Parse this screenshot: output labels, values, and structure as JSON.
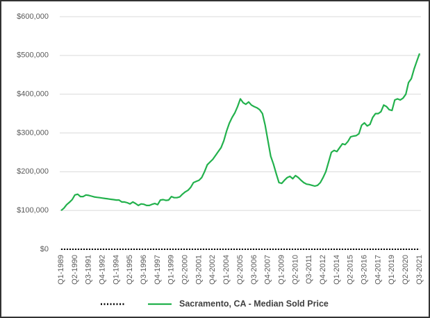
{
  "chart_data": {
    "type": "line",
    "categories": [
      "Q1-1989",
      null,
      null,
      null,
      null,
      "Q2-1990",
      null,
      null,
      null,
      null,
      "Q3-1991",
      null,
      null,
      null,
      null,
      "Q4-1992",
      null,
      null,
      null,
      null,
      "Q1-1994",
      null,
      null,
      null,
      null,
      "Q2-1995",
      null,
      null,
      null,
      null,
      "Q3-1996",
      null,
      null,
      null,
      null,
      "Q4-1997",
      null,
      null,
      null,
      null,
      "Q1-1999",
      null,
      null,
      null,
      null,
      "Q2-2000",
      null,
      null,
      null,
      null,
      "Q3-2001",
      null,
      null,
      null,
      null,
      "Q4-2002",
      null,
      null,
      null,
      null,
      "Q1-2004",
      null,
      null,
      null,
      null,
      "Q2-2005",
      null,
      null,
      null,
      null,
      "Q3-2006",
      null,
      null,
      null,
      null,
      "Q4-2007",
      null,
      null,
      null,
      null,
      "Q1-2009",
      null,
      null,
      null,
      null,
      "Q2-2010",
      null,
      null,
      null,
      null,
      "Q3-2011",
      null,
      null,
      null,
      null,
      "Q4-2012",
      null,
      null,
      null,
      null,
      "Q1-2014",
      null,
      null,
      null,
      null,
      "Q2-2015",
      null,
      null,
      null,
      null,
      "Q3-2016",
      null,
      null,
      null,
      null,
      "Q4-2017",
      null,
      null,
      null,
      null,
      "Q1-2019",
      null,
      null,
      null,
      null,
      "Q2-2020",
      null,
      null,
      null,
      null,
      "Q3-2021"
    ],
    "series": [
      {
        "color": "#000000",
        "dash": "dotted",
        "values": [
          0,
          0,
          0,
          0,
          0,
          0,
          0,
          0,
          0,
          0,
          0,
          0,
          0,
          0,
          0,
          0,
          0,
          0,
          0,
          0,
          0,
          0,
          0,
          0,
          0,
          0,
          0,
          0,
          0,
          0,
          0,
          0,
          0,
          0,
          0,
          0,
          0,
          0,
          0,
          0,
          0,
          0,
          0,
          0,
          0,
          0,
          0,
          0,
          0,
          0,
          0,
          0,
          0,
          0,
          0,
          0,
          0,
          0,
          0,
          0,
          0,
          0,
          0,
          0,
          0,
          0,
          0,
          0,
          0,
          0,
          0,
          0,
          0,
          0,
          0,
          0,
          0,
          0,
          0,
          0,
          0,
          0,
          0,
          0,
          0,
          0,
          0,
          0,
          0,
          0,
          0,
          0,
          0,
          0,
          0,
          0,
          0,
          0,
          0,
          0,
          0,
          0,
          0,
          0,
          0,
          0,
          0,
          0,
          0,
          0,
          0,
          0,
          0,
          0,
          0,
          0,
          0,
          0,
          0,
          0,
          0,
          0,
          0,
          0,
          0,
          0,
          0,
          0,
          0,
          0,
          0
        ]
      },
      {
        "name": "Sacramento, CA - Median Sold Price",
        "color": "#22b14c",
        "values": [
          100000,
          106000,
          115000,
          121000,
          128000,
          140000,
          142000,
          136000,
          136000,
          140000,
          139000,
          137000,
          135000,
          134000,
          133000,
          132000,
          131000,
          130000,
          129000,
          128000,
          127000,
          127000,
          122000,
          122000,
          120000,
          117000,
          122000,
          118000,
          113000,
          117000,
          116000,
          113000,
          113000,
          116000,
          118000,
          115000,
          127000,
          128000,
          126000,
          127000,
          136000,
          133000,
          133000,
          135000,
          142000,
          148000,
          152000,
          160000,
          172000,
          175000,
          178000,
          185000,
          200000,
          218000,
          225000,
          232000,
          242000,
          252000,
          262000,
          280000,
          305000,
          325000,
          340000,
          352000,
          368000,
          388000,
          378000,
          374000,
          380000,
          372000,
          368000,
          365000,
          360000,
          350000,
          320000,
          280000,
          240000,
          220000,
          195000,
          172000,
          170000,
          178000,
          185000,
          188000,
          182000,
          190000,
          185000,
          178000,
          172000,
          168000,
          167000,
          165000,
          163000,
          165000,
          172000,
          185000,
          200000,
          225000,
          250000,
          255000,
          252000,
          262000,
          272000,
          270000,
          278000,
          290000,
          292000,
          293000,
          298000,
          320000,
          326000,
          318000,
          322000,
          340000,
          350000,
          350000,
          355000,
          372000,
          368000,
          360000,
          358000,
          385000,
          388000,
          385000,
          390000,
          400000,
          430000,
          440000,
          465000,
          485000,
          505000
        ]
      }
    ],
    "ylim": [
      0,
      600000
    ],
    "yticks": [
      {
        "value": 0,
        "label": "$0"
      },
      {
        "value": 100000,
        "label": "$100,000"
      },
      {
        "value": 200000,
        "label": "$200,000"
      },
      {
        "value": 300000,
        "label": "$300,000"
      },
      {
        "value": 400000,
        "label": "$400,000"
      },
      {
        "value": 500000,
        "label": "$500,000"
      },
      {
        "value": 600000,
        "label": "$600,000"
      }
    ],
    "grid": true,
    "legend": "bottom"
  }
}
